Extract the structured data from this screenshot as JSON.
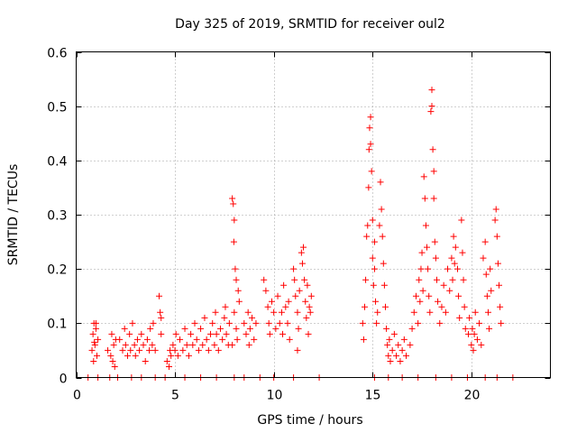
{
  "chart_data": {
    "type": "scatter",
    "title": "Day 325 of 2019, SRMTID for receiver oul2",
    "xlabel": "GPS time / hours",
    "ylabel": "SRMTID / TECUs",
    "xlim": [
      0,
      24
    ],
    "ylim": [
      0,
      0.6
    ],
    "xticks": [
      0,
      5,
      10,
      15,
      20
    ],
    "xtick_labels": [
      "0",
      "5",
      "10",
      "15",
      "20"
    ],
    "yticks": [
      0,
      0.1,
      0.2,
      0.3,
      0.4,
      0.5,
      0.6
    ],
    "ytick_labels": [
      "0",
      "0.1",
      "0.2",
      "0.3",
      "0.4",
      "0.5",
      "0.6"
    ],
    "grid": true,
    "marker": "+",
    "color": "#ff0000",
    "series": [
      {
        "name": "SRMTID",
        "points": [
          [
            0.8,
            0.05
          ],
          [
            0.85,
            0.08
          ],
          [
            0.9,
            0.1
          ],
          [
            0.95,
            0.06
          ],
          [
            1.0,
            0.09
          ],
          [
            1.05,
            0.04
          ],
          [
            1.1,
            0.07
          ],
          [
            0.88,
            0.03
          ],
          [
            1.0,
            0.1
          ],
          [
            0.92,
            0.065
          ],
          [
            1.6,
            0.05
          ],
          [
            1.75,
            0.04
          ],
          [
            1.8,
            0.08
          ],
          [
            1.85,
            0.03
          ],
          [
            1.9,
            0.06
          ],
          [
            2.0,
            0.07
          ],
          [
            1.95,
            0.02
          ],
          [
            2.2,
            0.07
          ],
          [
            2.35,
            0.05
          ],
          [
            2.45,
            0.09
          ],
          [
            2.5,
            0.06
          ],
          [
            2.6,
            0.04
          ],
          [
            2.7,
            0.08
          ],
          [
            2.75,
            0.05
          ],
          [
            2.85,
            0.1
          ],
          [
            2.95,
            0.06
          ],
          [
            3.0,
            0.04
          ],
          [
            3.1,
            0.07
          ],
          [
            3.2,
            0.05
          ],
          [
            3.3,
            0.08
          ],
          [
            3.4,
            0.06
          ],
          [
            3.5,
            0.03
          ],
          [
            3.6,
            0.07
          ],
          [
            3.7,
            0.05
          ],
          [
            3.75,
            0.09
          ],
          [
            3.85,
            0.06
          ],
          [
            3.9,
            0.1
          ],
          [
            4.0,
            0.05
          ],
          [
            4.2,
            0.15
          ],
          [
            4.25,
            0.12
          ],
          [
            4.3,
            0.11
          ],
          [
            4.3,
            0.08
          ],
          [
            4.6,
            0.03
          ],
          [
            4.7,
            0.02
          ],
          [
            4.75,
            0.05
          ],
          [
            4.8,
            0.04
          ],
          [
            4.9,
            0.06
          ],
          [
            5.0,
            0.05
          ],
          [
            5.05,
            0.08
          ],
          [
            5.15,
            0.04
          ],
          [
            5.25,
            0.07
          ],
          [
            5.4,
            0.05
          ],
          [
            5.5,
            0.09
          ],
          [
            5.6,
            0.06
          ],
          [
            5.7,
            0.04
          ],
          [
            5.8,
            0.08
          ],
          [
            5.9,
            0.06
          ],
          [
            6.0,
            0.1
          ],
          [
            6.1,
            0.07
          ],
          [
            6.2,
            0.05
          ],
          [
            6.3,
            0.09
          ],
          [
            6.4,
            0.06
          ],
          [
            6.5,
            0.11
          ],
          [
            6.6,
            0.07
          ],
          [
            6.7,
            0.05
          ],
          [
            6.8,
            0.08
          ],
          [
            6.9,
            0.1
          ],
          [
            7.0,
            0.06
          ],
          [
            7.05,
            0.12
          ],
          [
            7.1,
            0.08
          ],
          [
            7.2,
            0.05
          ],
          [
            7.3,
            0.09
          ],
          [
            7.4,
            0.07
          ],
          [
            7.5,
            0.11
          ],
          [
            7.55,
            0.13
          ],
          [
            7.6,
            0.08
          ],
          [
            7.7,
            0.06
          ],
          [
            7.75,
            0.1
          ],
          [
            7.9,
            0.33
          ],
          [
            7.95,
            0.32
          ],
          [
            8.0,
            0.29
          ],
          [
            7.98,
            0.25
          ],
          [
            8.05,
            0.2
          ],
          [
            8.1,
            0.18
          ],
          [
            8.2,
            0.16
          ],
          [
            8.0,
            0.12
          ],
          [
            8.1,
            0.09
          ],
          [
            8.25,
            0.14
          ],
          [
            8.15,
            0.07
          ],
          [
            7.9,
            0.06
          ],
          [
            8.5,
            0.1
          ],
          [
            8.6,
            0.08
          ],
          [
            8.7,
            0.12
          ],
          [
            8.75,
            0.06
          ],
          [
            8.8,
            0.09
          ],
          [
            8.9,
            0.11
          ],
          [
            9.0,
            0.07
          ],
          [
            9.1,
            0.1
          ],
          [
            9.5,
            0.18
          ],
          [
            9.6,
            0.16
          ],
          [
            9.7,
            0.13
          ],
          [
            9.75,
            0.1
          ],
          [
            9.8,
            0.08
          ],
          [
            9.9,
            0.14
          ],
          [
            10.0,
            0.12
          ],
          [
            10.1,
            0.09
          ],
          [
            10.2,
            0.15
          ],
          [
            10.3,
            0.1
          ],
          [
            10.4,
            0.12
          ],
          [
            10.45,
            0.08
          ],
          [
            10.5,
            0.17
          ],
          [
            10.6,
            0.13
          ],
          [
            10.7,
            0.1
          ],
          [
            10.75,
            0.14
          ],
          [
            10.8,
            0.07
          ],
          [
            11.0,
            0.2
          ],
          [
            11.05,
            0.18
          ],
          [
            11.1,
            0.15
          ],
          [
            11.2,
            0.12
          ],
          [
            11.25,
            0.09
          ],
          [
            11.3,
            0.16
          ],
          [
            11.4,
            0.23
          ],
          [
            11.45,
            0.21
          ],
          [
            11.5,
            0.24
          ],
          [
            11.55,
            0.18
          ],
          [
            11.6,
            0.14
          ],
          [
            11.65,
            0.11
          ],
          [
            11.7,
            0.17
          ],
          [
            11.75,
            0.08
          ],
          [
            11.8,
            0.13
          ],
          [
            11.2,
            0.05
          ],
          [
            11.85,
            0.12
          ],
          [
            11.9,
            0.15
          ],
          [
            14.5,
            0.1
          ],
          [
            14.55,
            0.07
          ],
          [
            14.6,
            0.13
          ],
          [
            14.65,
            0.18
          ],
          [
            14.7,
            0.26
          ],
          [
            14.75,
            0.28
          ],
          [
            14.8,
            0.35
          ],
          [
            14.82,
            0.42
          ],
          [
            14.85,
            0.46
          ],
          [
            14.9,
            0.48
          ],
          [
            14.9,
            0.43
          ],
          [
            14.95,
            0.38
          ],
          [
            15.0,
            0.29
          ],
          [
            15.0,
            0.22
          ],
          [
            15.05,
            0.17
          ],
          [
            15.1,
            0.2
          ],
          [
            15.1,
            0.25
          ],
          [
            15.15,
            0.14
          ],
          [
            15.2,
            0.1
          ],
          [
            15.25,
            0.12
          ],
          [
            15.35,
            0.28
          ],
          [
            15.4,
            0.36
          ],
          [
            15.45,
            0.31
          ],
          [
            15.5,
            0.26
          ],
          [
            15.55,
            0.21
          ],
          [
            15.6,
            0.17
          ],
          [
            15.65,
            0.13
          ],
          [
            15.7,
            0.09
          ],
          [
            15.75,
            0.06
          ],
          [
            15.8,
            0.04
          ],
          [
            15.85,
            0.07
          ],
          [
            15.9,
            0.03
          ],
          [
            16.0,
            0.05
          ],
          [
            16.1,
            0.08
          ],
          [
            16.2,
            0.04
          ],
          [
            16.3,
            0.06
          ],
          [
            16.4,
            0.03
          ],
          [
            16.5,
            0.05
          ],
          [
            16.6,
            0.07
          ],
          [
            16.7,
            0.04
          ],
          [
            16.9,
            0.06
          ],
          [
            17.0,
            0.09
          ],
          [
            17.1,
            0.12
          ],
          [
            17.2,
            0.15
          ],
          [
            17.3,
            0.1
          ],
          [
            17.35,
            0.18
          ],
          [
            17.4,
            0.14
          ],
          [
            17.45,
            0.2
          ],
          [
            17.5,
            0.23
          ],
          [
            17.55,
            0.16
          ],
          [
            17.6,
            0.37
          ],
          [
            17.65,
            0.33
          ],
          [
            17.7,
            0.28
          ],
          [
            17.75,
            0.24
          ],
          [
            17.8,
            0.2
          ],
          [
            17.85,
            0.15
          ],
          [
            17.9,
            0.12
          ],
          [
            17.95,
            0.49
          ],
          [
            18.0,
            0.53
          ],
          [
            18.0,
            0.5
          ],
          [
            18.05,
            0.42
          ],
          [
            18.1,
            0.38
          ],
          [
            18.1,
            0.33
          ],
          [
            18.15,
            0.25
          ],
          [
            18.2,
            0.22
          ],
          [
            18.25,
            0.18
          ],
          [
            18.3,
            0.14
          ],
          [
            18.4,
            0.1
          ],
          [
            18.5,
            0.13
          ],
          [
            18.6,
            0.17
          ],
          [
            18.7,
            0.12
          ],
          [
            18.8,
            0.2
          ],
          [
            18.9,
            0.16
          ],
          [
            19.0,
            0.22
          ],
          [
            19.05,
            0.18
          ],
          [
            19.1,
            0.26
          ],
          [
            19.15,
            0.21
          ],
          [
            19.2,
            0.24
          ],
          [
            19.3,
            0.2
          ],
          [
            19.35,
            0.15
          ],
          [
            19.4,
            0.11
          ],
          [
            19.5,
            0.29
          ],
          [
            19.55,
            0.23
          ],
          [
            19.6,
            0.18
          ],
          [
            19.65,
            0.13
          ],
          [
            19.7,
            0.09
          ],
          [
            19.85,
            0.08
          ],
          [
            19.9,
            0.11
          ],
          [
            20.0,
            0.06
          ],
          [
            20.05,
            0.09
          ],
          [
            20.1,
            0.05
          ],
          [
            20.15,
            0.08
          ],
          [
            20.2,
            0.12
          ],
          [
            20.3,
            0.07
          ],
          [
            20.4,
            0.1
          ],
          [
            20.5,
            0.06
          ],
          [
            20.6,
            0.22
          ],
          [
            20.7,
            0.25
          ],
          [
            20.75,
            0.19
          ],
          [
            20.8,
            0.15
          ],
          [
            20.85,
            0.12
          ],
          [
            20.9,
            0.09
          ],
          [
            20.95,
            0.2
          ],
          [
            21.0,
            0.16
          ],
          [
            21.2,
            0.29
          ],
          [
            21.25,
            0.31
          ],
          [
            21.3,
            0.26
          ],
          [
            21.35,
            0.21
          ],
          [
            21.4,
            0.17
          ],
          [
            21.45,
            0.13
          ],
          [
            21.5,
            0.1
          ],
          [
            0.6,
            0
          ],
          [
            1.1,
            0
          ],
          [
            1.7,
            0
          ],
          [
            2.1,
            0
          ],
          [
            2.8,
            0
          ],
          [
            3.3,
            0
          ],
          [
            4.0,
            0
          ],
          [
            4.5,
            0
          ],
          [
            5.5,
            0
          ],
          [
            6.3,
            0
          ],
          [
            7.1,
            0
          ],
          [
            8.0,
            0
          ],
          [
            8.5,
            0
          ],
          [
            9.3,
            0
          ],
          [
            10.0,
            0
          ],
          [
            11.0,
            0
          ],
          [
            12.3,
            0
          ],
          [
            15.1,
            0
          ],
          [
            15.8,
            0
          ],
          [
            16.5,
            0
          ],
          [
            17.3,
            0
          ],
          [
            18.2,
            0
          ],
          [
            19.0,
            0
          ],
          [
            19.8,
            0
          ],
          [
            20.7,
            0
          ],
          [
            21.3,
            0
          ],
          [
            22.1,
            0
          ]
        ]
      }
    ]
  }
}
